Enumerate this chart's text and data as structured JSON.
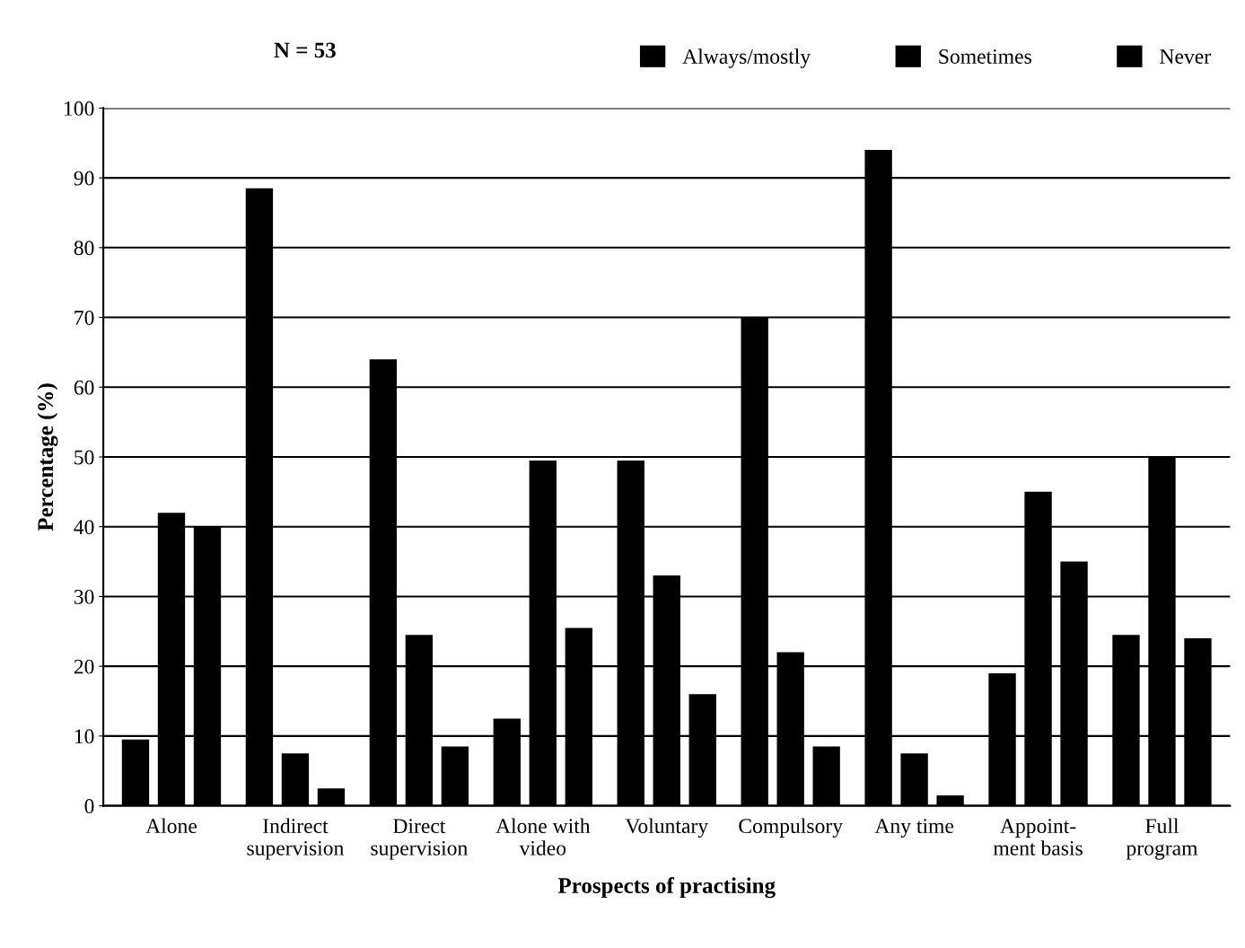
{
  "chart_data": {
    "type": "bar",
    "xlabel": "Prospects of practising",
    "ylabel": "Percentage (%)",
    "categories": [
      "Alone",
      "Indirect\nsupervision",
      "Direct\nsupervision",
      "Alone with\nvideo",
      "Voluntary",
      "Compulsory",
      "Any time",
      "Appoint-\nment basis",
      "Full\nprogram"
    ],
    "series": [
      {
        "name": "Always/mostly",
        "color": "#000000",
        "values": [
          9.5,
          88.5,
          64,
          12.5,
          49.5,
          70,
          94,
          19,
          24.5
        ]
      },
      {
        "name": "Sometimes",
        "color": "#000000",
        "values": [
          42,
          7.5,
          24.5,
          49.5,
          33,
          22,
          7.5,
          45,
          50
        ]
      },
      {
        "name": "Never",
        "color": "#000000",
        "values": [
          40,
          2.5,
          8.5,
          25.5,
          16,
          8.5,
          1.5,
          35,
          24
        ]
      }
    ],
    "ylim": [
      0,
      100
    ],
    "yticks": [
      0,
      10,
      20,
      30,
      40,
      50,
      60,
      70,
      80,
      90,
      100
    ],
    "grid": "y",
    "legend": "top",
    "annotations": [
      "N = 53"
    ]
  }
}
